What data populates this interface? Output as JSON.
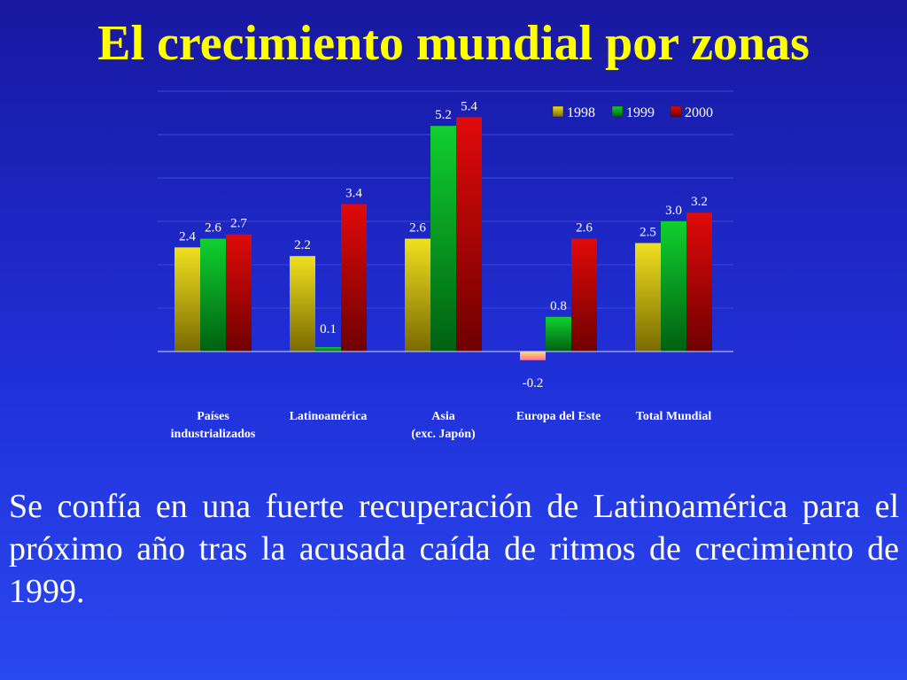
{
  "slide": {
    "title": "El crecimiento mundial por zonas",
    "body": "Se confía en una fuerte recuperación de Latinoamérica para el próximo año tras la acusada caída de ritmos de crecimiento de 1999.",
    "background_color": "#1f2fd0",
    "title_color": "#ffff00",
    "text_color": "#ffffff"
  },
  "chart_data": {
    "type": "bar",
    "categories": [
      [
        "Países",
        "industrializados"
      ],
      [
        "Latinoamérica"
      ],
      [
        "Asia",
        "(exc. Japón)"
      ],
      [
        "Europa del Este"
      ],
      [
        "Total Mundial"
      ]
    ],
    "series": [
      {
        "name": "1998",
        "color": "#f0e020",
        "values": [
          2.4,
          2.2,
          2.6,
          -0.2,
          2.5
        ]
      },
      {
        "name": "1999",
        "color": "#10d030",
        "values": [
          2.6,
          0.1,
          5.2,
          0.8,
          3.0
        ]
      },
      {
        "name": "2000",
        "color": "#e00a0a",
        "values": [
          2.7,
          3.4,
          5.4,
          2.6,
          3.2
        ]
      }
    ],
    "data_labels": [
      [
        "2.4",
        "2.2",
        "2.6",
        "-0.2",
        "2.5"
      ],
      [
        "2.6",
        "0.1",
        "5.2",
        "0.8",
        "3.0"
      ],
      [
        "2.7",
        "3.4",
        "5.4",
        "2.6",
        "3.2"
      ]
    ],
    "ylim": [
      -0.5,
      6
    ],
    "grid": true,
    "legend_position": "top-right",
    "title": "",
    "xlabel": "",
    "ylabel": ""
  }
}
